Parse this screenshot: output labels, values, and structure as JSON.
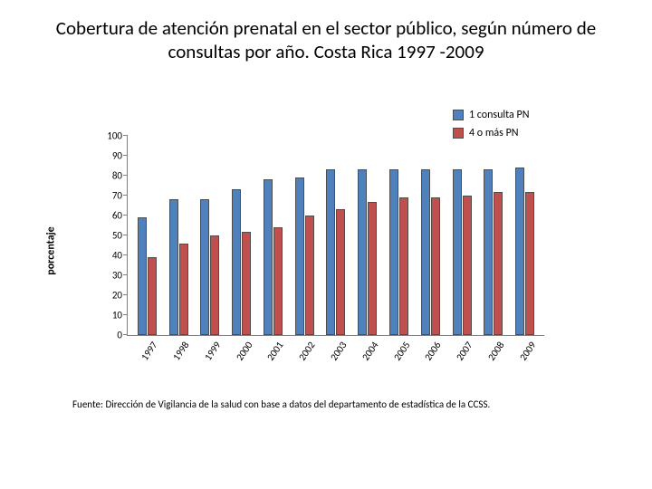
{
  "title": "Cobertura de atención prenatal en el sector público, según número de consultas por año. Costa Rica 1997 -2009",
  "source": "Fuente: Dirección de Vigilancia de la salud con base a datos del departamento de estadística de la CCSS.",
  "chart": {
    "type": "bar",
    "y_axis_label": "porcentaje",
    "ylim": [
      0,
      100
    ],
    "ytick_step": 10,
    "yticks": [
      0,
      10,
      20,
      30,
      40,
      50,
      60,
      70,
      80,
      90,
      100
    ],
    "background_color": "#ffffff",
    "axis_color": "#808080",
    "text_color": "#000000",
    "bar_border": "#4d4d4d",
    "categories": [
      "1997",
      "1998",
      "1999",
      "2000",
      "2001",
      "2002",
      "2003",
      "2004",
      "2005",
      "2006",
      "2007",
      "2008",
      "2009"
    ],
    "series": [
      {
        "name": "1 consulta PN",
        "color": "#4f81bd",
        "values": [
          59,
          68,
          68,
          73,
          78,
          79,
          83,
          83,
          83,
          83,
          83,
          83,
          84
        ]
      },
      {
        "name": "4 o más PN",
        "color": "#c0504d",
        "values": [
          39,
          46,
          50,
          52,
          54,
          60,
          63,
          67,
          69,
          69,
          70,
          72,
          72
        ]
      }
    ],
    "legend_position": "top-right",
    "label_fontsize": 11,
    "axis_label_fontsize": 12
  }
}
